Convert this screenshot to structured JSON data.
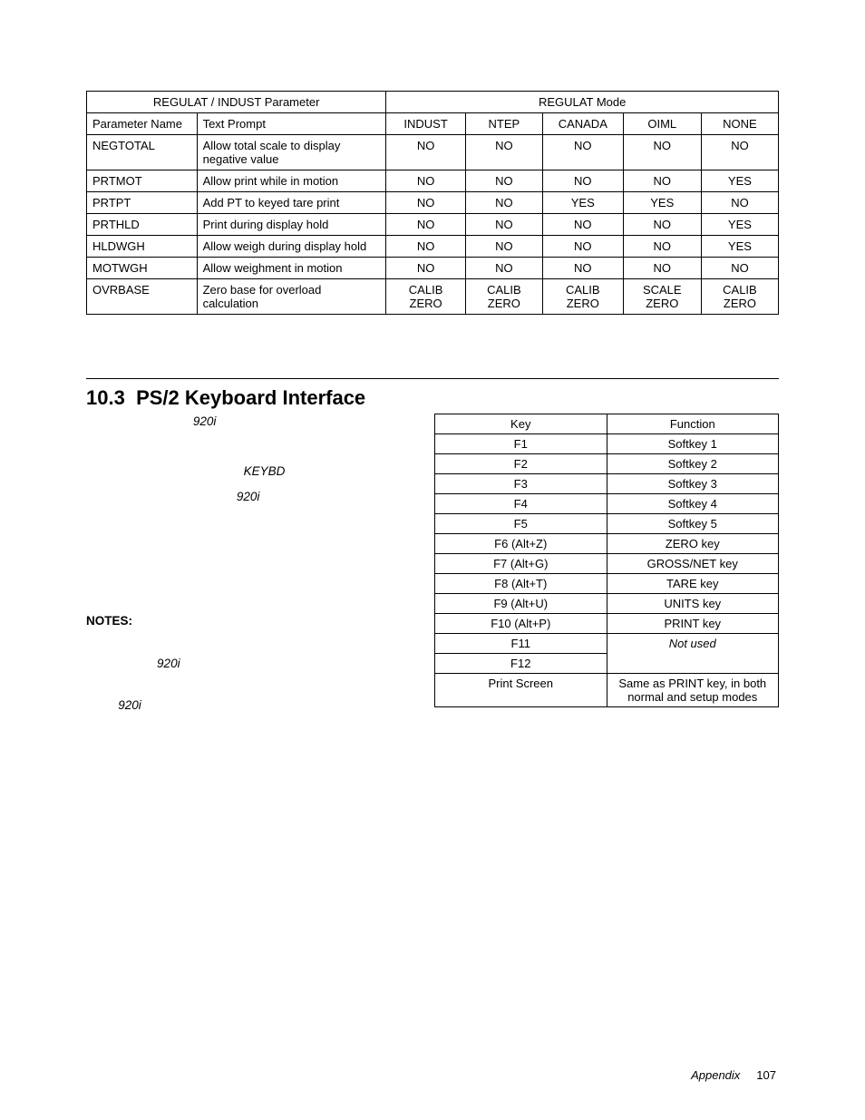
{
  "table1": {
    "header_group_left": "REGULAT / INDUST Parameter",
    "header_group_right": "REGULAT Mode",
    "col_param": "Parameter Name",
    "col_prompt": "Text Prompt",
    "modes": [
      "INDUST",
      "NTEP",
      "CANADA",
      "OIML",
      "NONE"
    ],
    "rows": [
      {
        "name": "NEGTOTAL",
        "prompt": "Allow total scale to display negative value",
        "v": [
          "NO",
          "NO",
          "NO",
          "NO",
          "NO"
        ]
      },
      {
        "name": "PRTMOT",
        "prompt": "Allow print while in motion",
        "v": [
          "NO",
          "NO",
          "NO",
          "NO",
          "YES"
        ]
      },
      {
        "name": "PRTPT",
        "prompt": "Add PT to keyed tare print",
        "v": [
          "NO",
          "NO",
          "YES",
          "YES",
          "NO"
        ]
      },
      {
        "name": "PRTHLD",
        "prompt": "Print during display hold",
        "v": [
          "NO",
          "NO",
          "NO",
          "NO",
          "YES"
        ]
      },
      {
        "name": "HLDWGH",
        "prompt": "Allow weigh during display hold",
        "v": [
          "NO",
          "NO",
          "NO",
          "NO",
          "YES"
        ]
      },
      {
        "name": "MOTWGH",
        "prompt": "Allow weighment in motion",
        "v": [
          "NO",
          "NO",
          "NO",
          "NO",
          "NO"
        ]
      },
      {
        "name": "OVRBASE",
        "prompt": "Zero base for overload calculation",
        "v": [
          "CALIB ZERO",
          "CALIB ZERO",
          "CALIB ZERO",
          "SCALE ZERO",
          "CALIB ZERO"
        ]
      }
    ]
  },
  "section_number": "10.3",
  "section_title": "PS/2 Keyboard Interface",
  "left": {
    "i920": "920i",
    "keybd": "KEYBD",
    "notes": "NOTES:"
  },
  "table2": {
    "hdr_key": "Key",
    "hdr_fn": "Function",
    "rows": [
      {
        "k": "F1",
        "f": "Softkey 1"
      },
      {
        "k": "F2",
        "f": "Softkey 2"
      },
      {
        "k": "F3",
        "f": "Softkey 3"
      },
      {
        "k": "F4",
        "f": "Softkey 4"
      },
      {
        "k": "F5",
        "f": "Softkey 5"
      },
      {
        "k": "F6 (Alt+Z)",
        "f": "ZERO key"
      },
      {
        "k": "F7 (Alt+G)",
        "f": "GROSS/NET key"
      },
      {
        "k": "F8 (Alt+T)",
        "f": "TARE key"
      },
      {
        "k": "F9 (Alt+U)",
        "f": "UNITS key"
      },
      {
        "k": "F10 (Alt+P)",
        "f": "PRINT key"
      },
      {
        "k": "F11",
        "f": "Not used",
        "ital": true
      },
      {
        "k": "F12",
        "f": ""
      },
      {
        "k": "Print Screen",
        "f": "Same as PRINT key, in both normal and setup modes"
      }
    ]
  },
  "footer_label": "Appendix",
  "footer_page": "107"
}
